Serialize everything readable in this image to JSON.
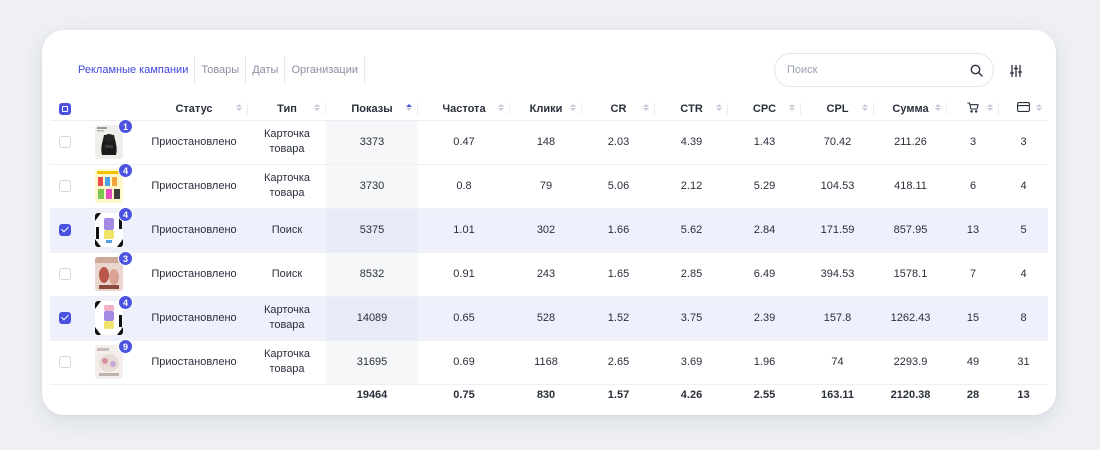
{
  "tabs": [
    {
      "label": "Рекламные кампании",
      "active": true
    },
    {
      "label": "Товары",
      "active": false
    },
    {
      "label": "Даты",
      "active": false
    },
    {
      "label": "Организации",
      "active": false
    }
  ],
  "search": {
    "placeholder": "Поиск",
    "value": ""
  },
  "columns": {
    "status": "Статус",
    "type": "Тип",
    "shows": "Показы",
    "freq": "Частота",
    "clicks": "Клики",
    "cr": "CR",
    "ctr": "CTR",
    "cpc": "CPC",
    "cpl": "CPL",
    "sum": "Сумма"
  },
  "icons": {
    "search": "search-icon",
    "filter": "sliders-icon",
    "cart": "cart-icon",
    "card": "credit-card-icon"
  },
  "colors": {
    "accent": "#4c52e0",
    "selected_row": "#eef0fc"
  },
  "rows": [
    {
      "checked": false,
      "badge": "1",
      "status": "Приостановлено",
      "type": "Карточка товара",
      "shows": "3373",
      "freq": "0.47",
      "clicks": "148",
      "cr": "2.03",
      "ctr": "4.39",
      "cpc": "1.43",
      "cpl": "70.42",
      "sum": "211.26",
      "carts": "3",
      "orders": "3"
    },
    {
      "checked": false,
      "badge": "4",
      "status": "Приостановлено",
      "type": "Карточка товара",
      "shows": "3730",
      "freq": "0.8",
      "clicks": "79",
      "cr": "5.06",
      "ctr": "2.12",
      "cpc": "5.29",
      "cpl": "104.53",
      "sum": "418.11",
      "carts": "6",
      "orders": "4"
    },
    {
      "checked": true,
      "badge": "4",
      "status": "Приостановлено",
      "type": "Поиск",
      "shows": "5375",
      "freq": "1.01",
      "clicks": "302",
      "cr": "1.66",
      "ctr": "5.62",
      "cpc": "2.84",
      "cpl": "171.59",
      "sum": "857.95",
      "carts": "13",
      "orders": "5"
    },
    {
      "checked": false,
      "badge": "3",
      "status": "Приостановлено",
      "type": "Поиск",
      "shows": "8532",
      "freq": "0.91",
      "clicks": "243",
      "cr": "1.65",
      "ctr": "2.85",
      "cpc": "6.49",
      "cpl": "394.53",
      "sum": "1578.1",
      "carts": "7",
      "orders": "4"
    },
    {
      "checked": true,
      "badge": "4",
      "status": "Приостановлено",
      "type": "Карточка товара",
      "shows": "14089",
      "freq": "0.65",
      "clicks": "528",
      "cr": "1.52",
      "ctr": "3.75",
      "cpc": "2.39",
      "cpl": "157.8",
      "sum": "1262.43",
      "carts": "15",
      "orders": "8"
    },
    {
      "checked": false,
      "badge": "9",
      "status": "Приостановлено",
      "type": "Карточка товара",
      "shows": "31695",
      "freq": "0.69",
      "clicks": "1168",
      "cr": "2.65",
      "ctr": "3.69",
      "cpc": "1.96",
      "cpl": "74",
      "sum": "2293.9",
      "carts": "49",
      "orders": "31"
    }
  ],
  "totals": {
    "shows": "19464",
    "freq": "0.75",
    "clicks": "830",
    "cr": "1.57",
    "ctr": "4.26",
    "cpc": "2.55",
    "cpl": "163.11",
    "sum": "2120.38",
    "carts": "28",
    "orders": "13"
  }
}
